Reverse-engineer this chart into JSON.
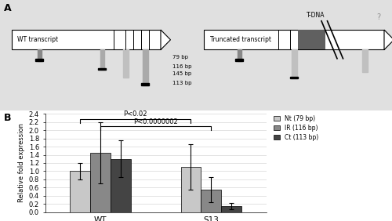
{
  "panel_A_label": "A",
  "panel_B_label": "B",
  "wt_transcript_label": "WT transcript",
  "trunc_transcript_label": "Truncated transcript",
  "tdna_label": "T-DNA",
  "question_mark": "?",
  "bp_labels": [
    "79 bp",
    "116 bp",
    "145 bp",
    "113 bp"
  ],
  "bar_groups": [
    "WT",
    "S13"
  ],
  "bar_labels": [
    "Nt (79 bp)",
    "IR (116 bp)",
    "Ct (113 bp)"
  ],
  "bar_colors": [
    "#c8c8c8",
    "#888888",
    "#444444"
  ],
  "bar_values_WT": [
    1.0,
    1.45,
    1.3
  ],
  "bar_values_S13": [
    1.1,
    0.55,
    0.15
  ],
  "bar_errors_WT": [
    0.2,
    0.75,
    0.45
  ],
  "bar_errors_S13": [
    0.55,
    0.3,
    0.07
  ],
  "ylabel": "Relative fold expression",
  "ylim": [
    0,
    2.4
  ],
  "yticks": [
    0,
    0.2,
    0.4,
    0.6,
    0.8,
    1.0,
    1.2,
    1.4,
    1.6,
    1.8,
    2.0,
    2.2,
    2.4
  ],
  "sig1_text": "P<0.02",
  "sig2_text": "P<0.0000002",
  "background_color": "#ffffff",
  "panel_A_bg": "#e0e0e0"
}
